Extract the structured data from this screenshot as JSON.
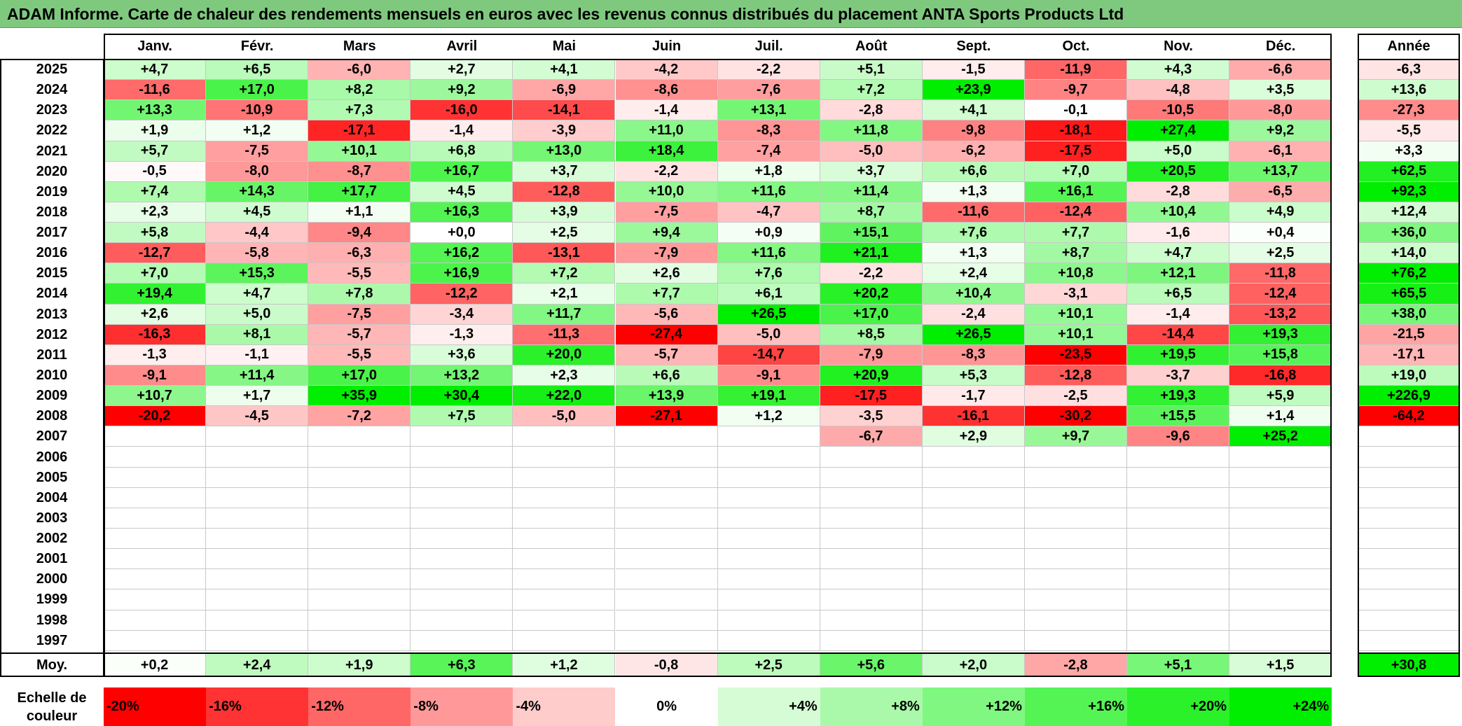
{
  "title": "ADAM Informe. Carte de chaleur des rendements mensuels en euros avec les revenus connus distribués du placement ANTA Sports Products Ltd",
  "colors": {
    "title_bar": "#7fc97f",
    "negative_max": "#ff0000",
    "positive_max": "#00ee00",
    "zero": "#ffffff"
  },
  "chart_data": {
    "type": "heatmap",
    "title": "ADAM Informe. Carte de chaleur des rendements mensuels en euros avec les revenus connus distribués du placement ANTA Sports Products Ltd",
    "months": [
      "Janv.",
      "Févr.",
      "Mars",
      "Avril",
      "Mai",
      "Juin",
      "Juil.",
      "Août",
      "Sept.",
      "Oct.",
      "Nov.",
      "Déc."
    ],
    "year_header": "Année",
    "average_label": "Moy.",
    "rows": [
      {
        "year": "2025",
        "values": [
          "+4,7",
          "+6,5",
          "-6,0",
          "+2,7",
          "+4,1",
          "-4,2",
          "-2,2",
          "+5,1",
          "-1,5",
          "-11,9",
          "+4,3",
          "-6,6"
        ],
        "annual": "-6,3"
      },
      {
        "year": "2024",
        "values": [
          "-11,6",
          "+17,0",
          "+8,2",
          "+9,2",
          "-6,9",
          "-8,6",
          "-7,6",
          "+7,2",
          "+23,9",
          "-9,7",
          "-4,8",
          "+3,5"
        ],
        "annual": "+13,6"
      },
      {
        "year": "2023",
        "values": [
          "+13,3",
          "-10,9",
          "+7,3",
          "-16,0",
          "-14,1",
          "-1,4",
          "+13,1",
          "-2,8",
          "+4,1",
          "-0,1",
          "-10,5",
          "-8,0"
        ],
        "annual": "-27,3"
      },
      {
        "year": "2022",
        "values": [
          "+1,9",
          "+1,2",
          "-17,1",
          "-1,4",
          "-3,9",
          "+11,0",
          "-8,3",
          "+11,8",
          "-9,8",
          "-18,1",
          "+27,4",
          "+9,2"
        ],
        "annual": "-5,5"
      },
      {
        "year": "2021",
        "values": [
          "+5,7",
          "-7,5",
          "+10,1",
          "+6,8",
          "+13,0",
          "+18,4",
          "-7,4",
          "-5,0",
          "-6,2",
          "-17,5",
          "+5,0",
          "-6,1"
        ],
        "annual": "+3,3"
      },
      {
        "year": "2020",
        "values": [
          "-0,5",
          "-8,0",
          "-8,7",
          "+16,7",
          "+3,7",
          "-2,2",
          "+1,8",
          "+3,7",
          "+6,6",
          "+7,0",
          "+20,5",
          "+13,7"
        ],
        "annual": "+62,5"
      },
      {
        "year": "2019",
        "values": [
          "+7,4",
          "+14,3",
          "+17,7",
          "+4,5",
          "-12,8",
          "+10,0",
          "+11,6",
          "+11,4",
          "+1,3",
          "+16,1",
          "-2,8",
          "-6,5"
        ],
        "annual": "+92,3"
      },
      {
        "year": "2018",
        "values": [
          "+2,3",
          "+4,5",
          "+1,1",
          "+16,3",
          "+3,9",
          "-7,5",
          "-4,7",
          "+8,7",
          "-11,6",
          "-12,4",
          "+10,4",
          "+4,9"
        ],
        "annual": "+12,4"
      },
      {
        "year": "2017",
        "values": [
          "+5,8",
          "-4,4",
          "-9,4",
          "+0,0",
          "+2,5",
          "+9,4",
          "+0,9",
          "+15,1",
          "+7,6",
          "+7,7",
          "-1,6",
          "+0,4"
        ],
        "annual": "+36,0"
      },
      {
        "year": "2016",
        "values": [
          "-12,7",
          "-5,8",
          "-6,3",
          "+16,2",
          "-13,1",
          "-7,9",
          "+11,6",
          "+21,1",
          "+1,3",
          "+8,7",
          "+4,7",
          "+2,5"
        ],
        "annual": "+14,0"
      },
      {
        "year": "2015",
        "values": [
          "+7,0",
          "+15,3",
          "-5,5",
          "+16,9",
          "+7,2",
          "+2,6",
          "+7,6",
          "-2,2",
          "+2,4",
          "+10,8",
          "+12,1",
          "-11,8"
        ],
        "annual": "+76,2"
      },
      {
        "year": "2014",
        "values": [
          "+19,4",
          "+4,7",
          "+7,8",
          "-12,2",
          "+2,1",
          "+7,7",
          "+6,1",
          "+20,2",
          "+10,4",
          "-3,1",
          "+6,5",
          "-12,4"
        ],
        "annual": "+65,5"
      },
      {
        "year": "2013",
        "values": [
          "+2,6",
          "+5,0",
          "-7,5",
          "-3,4",
          "+11,7",
          "-5,6",
          "+26,5",
          "+17,0",
          "-2,4",
          "+10,1",
          "-1,4",
          "-13,2"
        ],
        "annual": "+38,0"
      },
      {
        "year": "2012",
        "values": [
          "-16,3",
          "+8,1",
          "-5,7",
          "-1,3",
          "-11,3",
          "-27,4",
          "-5,0",
          "+8,5",
          "+26,5",
          "+10,1",
          "-14,4",
          "+19,3"
        ],
        "annual": "-21,5"
      },
      {
        "year": "2011",
        "values": [
          "-1,3",
          "-1,1",
          "-5,5",
          "+3,6",
          "+20,0",
          "-5,7",
          "-14,7",
          "-7,9",
          "-8,3",
          "-23,5",
          "+19,5",
          "+15,8"
        ],
        "annual": "-17,1"
      },
      {
        "year": "2010",
        "values": [
          "-9,1",
          "+11,4",
          "+17,0",
          "+13,2",
          "+2,3",
          "+6,6",
          "-9,1",
          "+20,9",
          "+5,3",
          "-12,8",
          "-3,7",
          "-16,8"
        ],
        "annual": "+19,0"
      },
      {
        "year": "2009",
        "values": [
          "+10,7",
          "+1,7",
          "+35,9",
          "+30,4",
          "+22,0",
          "+13,9",
          "+19,1",
          "-17,5",
          "-1,7",
          "-2,5",
          "+19,3",
          "+5,9"
        ],
        "annual": "+226,9"
      },
      {
        "year": "2008",
        "values": [
          "-20,2",
          "-4,5",
          "-7,2",
          "+7,5",
          "-5,0",
          "-27,1",
          "+1,2",
          "-3,5",
          "-16,1",
          "-30,2",
          "+15,5",
          "+1,4"
        ],
        "annual": "-64,2"
      },
      {
        "year": "2007",
        "values": [
          "",
          "",
          "",
          "",
          "",
          "",
          "",
          "-6,7",
          "+2,9",
          "+9,7",
          "-9,6",
          "+25,2"
        ],
        "annual": ""
      },
      {
        "year": "2006",
        "values": [
          "",
          "",
          "",
          "",
          "",
          "",
          "",
          "",
          "",
          "",
          "",
          ""
        ],
        "annual": ""
      },
      {
        "year": "2005",
        "values": [
          "",
          "",
          "",
          "",
          "",
          "",
          "",
          "",
          "",
          "",
          "",
          ""
        ],
        "annual": ""
      },
      {
        "year": "2004",
        "values": [
          "",
          "",
          "",
          "",
          "",
          "",
          "",
          "",
          "",
          "",
          "",
          ""
        ],
        "annual": ""
      },
      {
        "year": "2003",
        "values": [
          "",
          "",
          "",
          "",
          "",
          "",
          "",
          "",
          "",
          "",
          "",
          ""
        ],
        "annual": ""
      },
      {
        "year": "2002",
        "values": [
          "",
          "",
          "",
          "",
          "",
          "",
          "",
          "",
          "",
          "",
          "",
          ""
        ],
        "annual": ""
      },
      {
        "year": "2001",
        "values": [
          "",
          "",
          "",
          "",
          "",
          "",
          "",
          "",
          "",
          "",
          "",
          ""
        ],
        "annual": ""
      },
      {
        "year": "2000",
        "values": [
          "",
          "",
          "",
          "",
          "",
          "",
          "",
          "",
          "",
          "",
          "",
          ""
        ],
        "annual": ""
      },
      {
        "year": "1999",
        "values": [
          "",
          "",
          "",
          "",
          "",
          "",
          "",
          "",
          "",
          "",
          "",
          ""
        ],
        "annual": ""
      },
      {
        "year": "1998",
        "values": [
          "",
          "",
          "",
          "",
          "",
          "",
          "",
          "",
          "",
          "",
          "",
          ""
        ],
        "annual": ""
      },
      {
        "year": "1997",
        "values": [
          "",
          "",
          "",
          "",
          "",
          "",
          "",
          "",
          "",
          "",
          "",
          ""
        ],
        "annual": ""
      }
    ],
    "averages": {
      "values": [
        "+0,2",
        "+2,4",
        "+1,9",
        "+6,3",
        "+1,2",
        "-0,8",
        "+2,5",
        "+5,6",
        "+2,0",
        "-2,8",
        "+5,1",
        "+1,5"
      ],
      "annual": "+30,8"
    },
    "color_scale": {
      "label": "Echelle de couleur",
      "stops": [
        "-20%",
        "-16%",
        "-12%",
        "-8%",
        "-4%",
        "0%",
        "+4%",
        "+8%",
        "+12%",
        "+16%",
        "+20%",
        "+24%"
      ],
      "range": [
        -20,
        24
      ]
    }
  }
}
